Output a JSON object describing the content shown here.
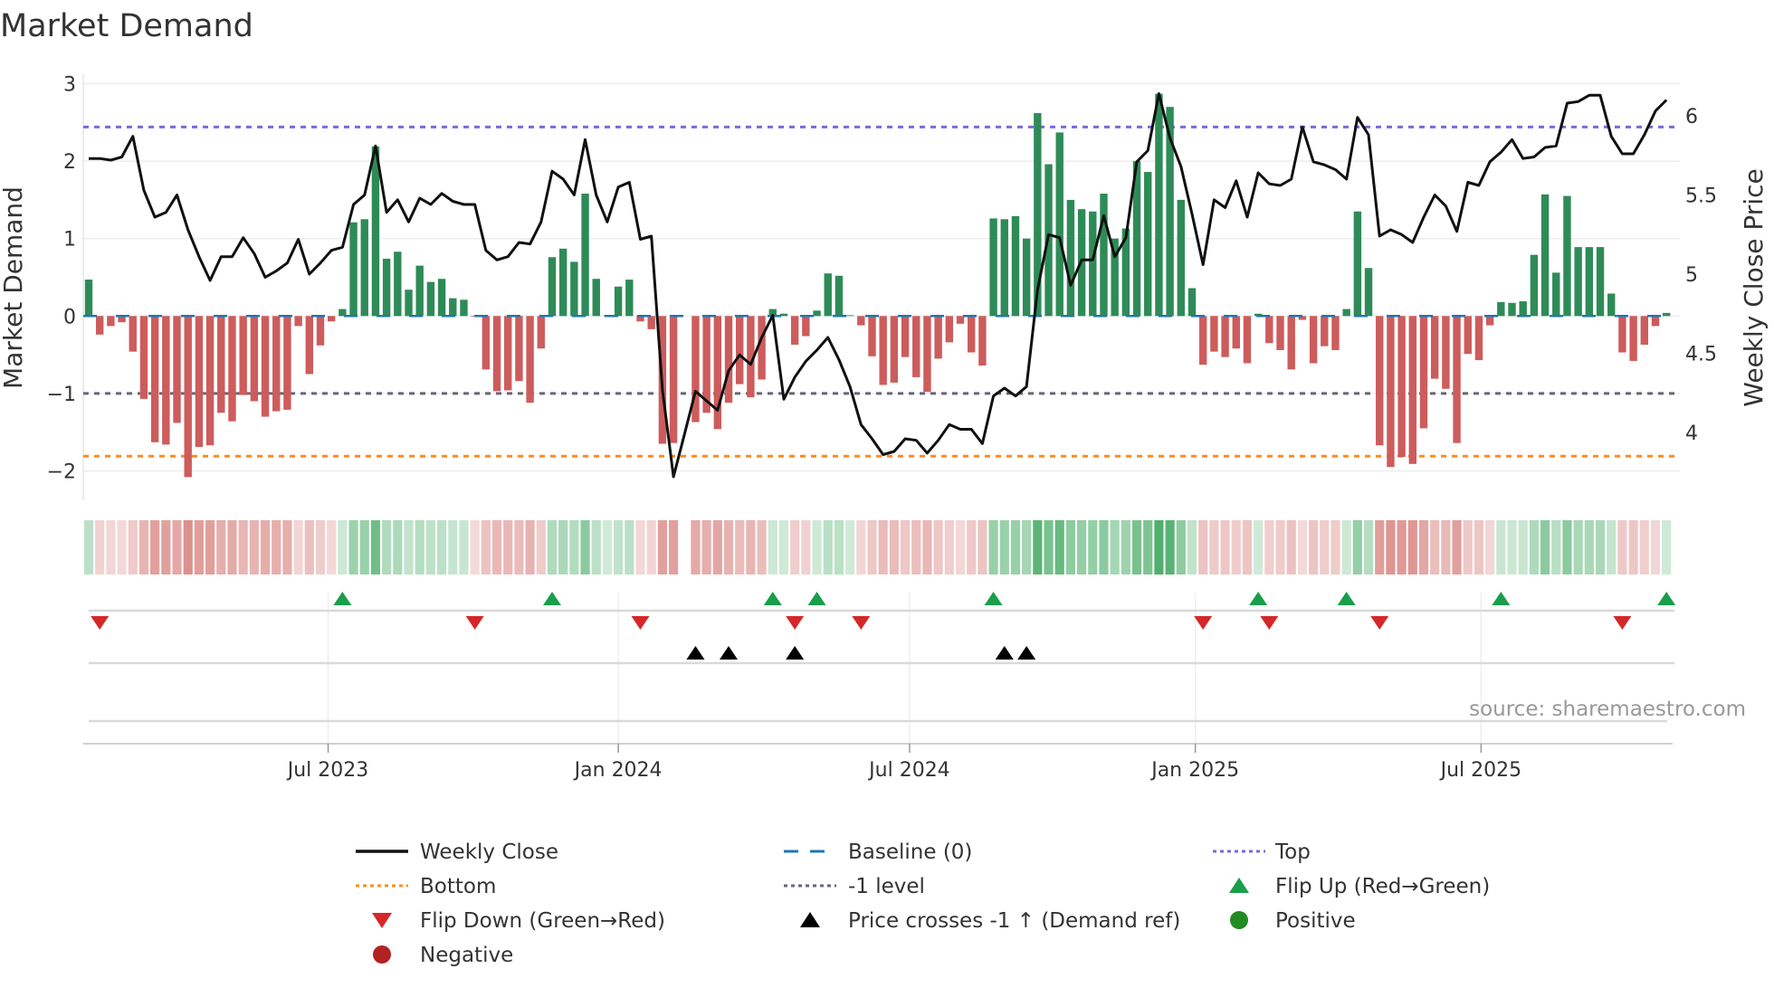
{
  "chart_data": {
    "type": "bar",
    "title": "Market Demand",
    "ylabel": "Market Demand",
    "y2label": "Weekly Close Price",
    "ylim": [
      -2.35,
      3.15
    ],
    "y2lim": [
      3.61,
      6.27
    ],
    "yticks": [
      {
        "v": 3,
        "label": "3"
      },
      {
        "v": 2,
        "label": "2"
      },
      {
        "v": 1,
        "label": "1"
      },
      {
        "v": 0,
        "label": "0"
      },
      {
        "v": -1,
        "label": "−1"
      },
      {
        "v": -2,
        "label": "−2"
      }
    ],
    "y2ticks": [
      {
        "v": 6,
        "label": "6"
      },
      {
        "v": 5.5,
        "label": "5.5"
      },
      {
        "v": 5,
        "label": "5"
      },
      {
        "v": 4.5,
        "label": "4.5"
      },
      {
        "v": 4,
        "label": "4"
      }
    ],
    "xticks": [
      {
        "week": 21.7,
        "label": "Jul 2023"
      },
      {
        "week": 48.0,
        "label": "Jan 2024"
      },
      {
        "week": 74.4,
        "label": "Jul 2024"
      },
      {
        "week": 100.3,
        "label": "Jan 2025"
      },
      {
        "week": 126.2,
        "label": "Jul 2025"
      }
    ],
    "reference_lines": {
      "top": 2.44,
      "bottom": -1.81,
      "minus_one": -1,
      "baseline": 0
    },
    "demand": [
      0.47,
      -0.24,
      -0.13,
      -0.08,
      -0.46,
      -1.07,
      -1.63,
      -1.66,
      -1.38,
      -2.08,
      -1.69,
      -1.67,
      -1.25,
      -1.36,
      -1.02,
      -1.1,
      -1.3,
      -1.23,
      -1.21,
      -0.13,
      -0.75,
      -0.38,
      -0.07,
      0.09,
      1.21,
      1.25,
      2.19,
      0.74,
      0.83,
      0.34,
      0.65,
      0.44,
      0.48,
      0.23,
      0.21,
      -0.01,
      -0.69,
      -0.97,
      -0.96,
      -0.84,
      -1.12,
      -0.42,
      0.76,
      0.87,
      0.7,
      1.58,
      0.48,
      0.01,
      0.38,
      0.47,
      -0.07,
      -0.17,
      -1.65,
      -1.64,
      null,
      -1.37,
      -1.25,
      -1.46,
      -1.12,
      -0.88,
      -1.05,
      -0.82,
      0.09,
      0.03,
      -0.37,
      -0.26,
      0.07,
      0.55,
      0.52,
      0.01,
      -0.12,
      -0.52,
      -0.89,
      -0.86,
      -0.53,
      -0.79,
      -0.98,
      -0.55,
      -0.34,
      -0.1,
      -0.47,
      -0.64,
      1.26,
      1.25,
      1.29,
      1.0,
      2.62,
      1.96,
      2.37,
      1.5,
      1.38,
      1.35,
      1.58,
      1.0,
      1.13,
      2.0,
      1.86,
      2.87,
      2.7,
      1.5,
      0.36,
      -0.63,
      -0.46,
      -0.53,
      -0.42,
      -0.61,
      0.03,
      -0.35,
      -0.44,
      -0.69,
      -0.05,
      -0.61,
      -0.39,
      -0.44,
      0.09,
      1.35,
      0.62,
      -1.67,
      -1.95,
      -1.82,
      -1.91,
      -1.45,
      -0.81,
      -0.94,
      -1.64,
      -0.49,
      -0.57,
      -0.12,
      0.18,
      0.17,
      0.19,
      0.79,
      1.57,
      0.56,
      1.55,
      0.89,
      0.89,
      0.89,
      0.29,
      -0.47,
      -0.58,
      -0.37,
      -0.13,
      0.04
    ],
    "weekly_close": [
      5.73,
      5.73,
      5.72,
      5.74,
      5.87,
      5.53,
      5.36,
      5.39,
      5.5,
      5.28,
      5.11,
      4.96,
      5.11,
      5.11,
      5.23,
      5.13,
      4.98,
      5.02,
      5.07,
      5.22,
      5.0,
      5.07,
      5.15,
      5.17,
      5.44,
      5.5,
      5.81,
      5.39,
      5.47,
      5.33,
      5.48,
      5.44,
      5.51,
      5.46,
      5.44,
      5.44,
      5.15,
      5.09,
      5.11,
      5.2,
      5.19,
      5.33,
      5.65,
      5.6,
      5.5,
      5.85,
      5.5,
      5.33,
      5.55,
      5.58,
      5.22,
      5.24,
      4.27,
      3.72,
      3.99,
      4.26,
      4.2,
      4.14,
      4.39,
      4.49,
      4.43,
      4.6,
      4.74,
      4.21,
      4.35,
      4.45,
      4.52,
      4.6,
      4.46,
      4.29,
      4.05,
      3.96,
      3.86,
      3.88,
      3.96,
      3.95,
      3.87,
      3.95,
      4.05,
      4.02,
      4.02,
      3.93,
      4.23,
      4.28,
      4.23,
      4.29,
      4.9,
      5.25,
      5.23,
      4.93,
      5.09,
      5.09,
      5.37,
      5.11,
      5.23,
      5.71,
      5.78,
      6.14,
      5.86,
      5.68,
      5.38,
      5.06,
      5.47,
      5.42,
      5.59,
      5.36,
      5.64,
      5.57,
      5.56,
      5.6,
      5.93,
      5.71,
      5.69,
      5.66,
      5.6,
      5.99,
      5.88,
      5.24,
      5.28,
      5.25,
      5.2,
      5.36,
      5.5,
      5.43,
      5.27,
      5.58,
      5.56,
      5.71,
      5.77,
      5.85,
      5.73,
      5.74,
      5.8,
      5.81,
      6.08,
      6.09,
      6.13,
      6.13,
      5.87,
      5.76,
      5.76,
      5.88,
      6.03,
      6.1
    ],
    "flip_up_weeks": [
      23,
      42,
      62,
      66,
      82,
      106,
      114,
      128,
      143
    ],
    "flip_down_weeks": [
      1,
      35,
      50,
      64,
      70,
      101,
      107,
      117,
      139
    ],
    "price_cross_weeks": [
      55,
      58,
      64,
      83,
      85
    ],
    "legend": {
      "placement": "bottom",
      "items": [
        {
          "key": "weekly_close",
          "label": "Weekly Close"
        },
        {
          "key": "baseline",
          "label": "Baseline (0)"
        },
        {
          "key": "top",
          "label": "Top"
        },
        {
          "key": "bottom",
          "label": "Bottom"
        },
        {
          "key": "minus_one",
          "label": "-1 level"
        },
        {
          "key": "flip_up",
          "label": "Flip Up (Red→Green)"
        },
        {
          "key": "flip_down",
          "label": "Flip Down (Green→Red)"
        },
        {
          "key": "price_cross",
          "label": "Price crosses -1 ↑ (Demand ref)"
        },
        {
          "key": "positive",
          "label": "Positive"
        },
        {
          "key": "negative",
          "label": "Negative"
        }
      ]
    },
    "colors": {
      "positive_bar": "#2e8b57",
      "negative_bar": "#cd5c5c",
      "line": "#111111",
      "baseline": "#1f77b4",
      "top": "#7b68d8",
      "bottom": "#ff8c1a",
      "minus_one": "#666677",
      "flip_up": "#1a9e4a",
      "flip_down": "#d62728",
      "price_cross": "#000000",
      "positive_dot": "#228b22",
      "negative_dot": "#b22222"
    },
    "source": "source: sharemaestro.com"
  }
}
